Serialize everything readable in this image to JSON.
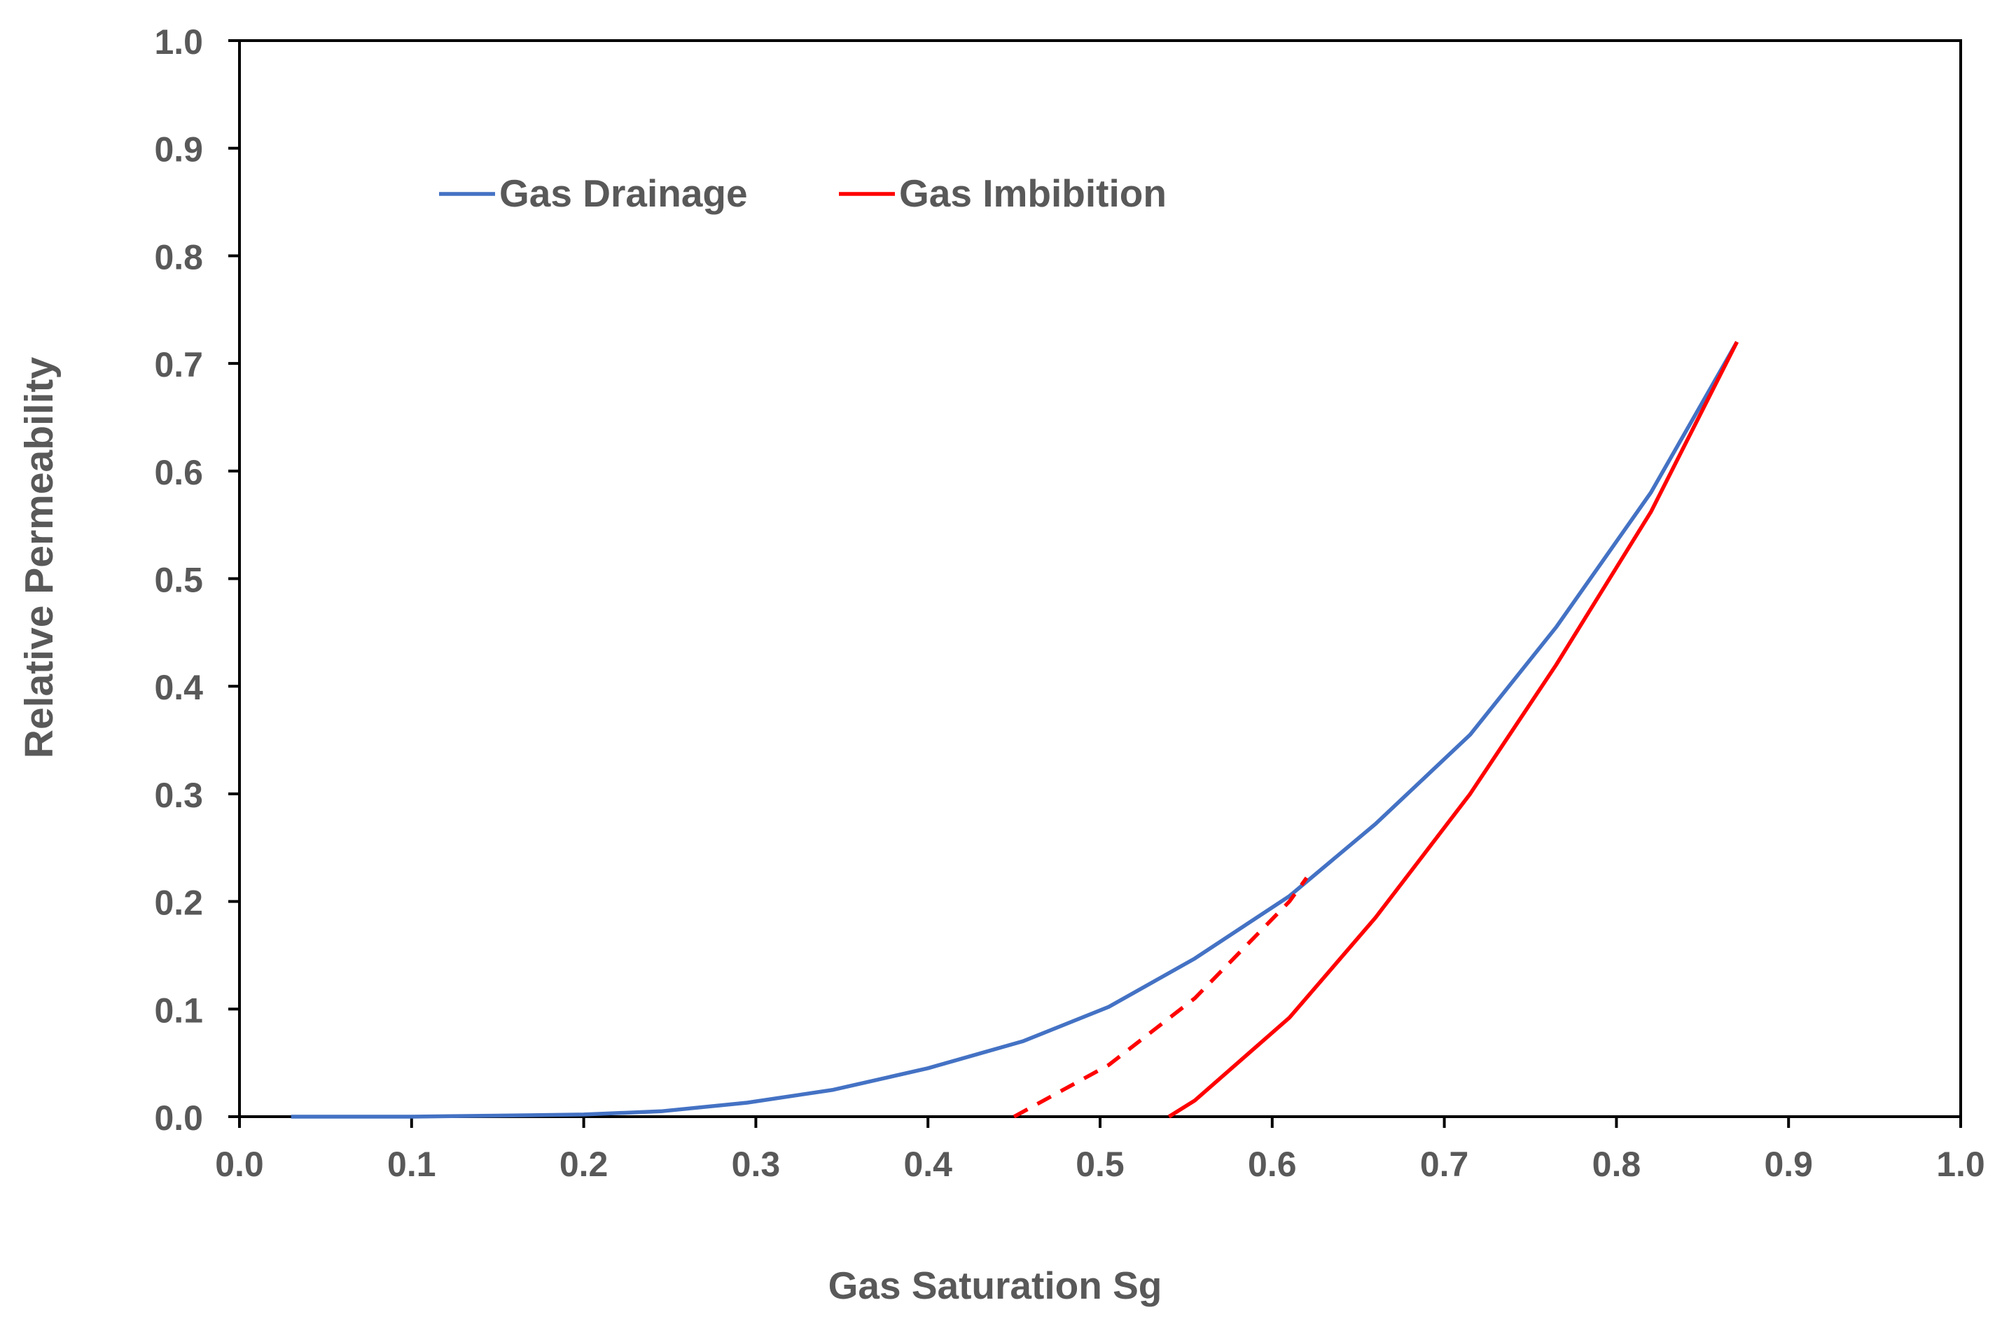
{
  "chart_data": {
    "type": "line",
    "title": "",
    "xlabel": "Gas Saturation Sg",
    "ylabel": "Relative Permeability",
    "xlim": [
      0.0,
      1.0
    ],
    "ylim": [
      0.0,
      1.0
    ],
    "grid": false,
    "legend_position": "top-left",
    "x_ticks": [
      "0.0",
      "0.1",
      "0.2",
      "0.3",
      "0.4",
      "0.5",
      "0.6",
      "0.7",
      "0.8",
      "0.9",
      "1.0"
    ],
    "y_ticks": [
      "0.0",
      "0.1",
      "0.2",
      "0.3",
      "0.4",
      "0.5",
      "0.6",
      "0.7",
      "0.8",
      "0.9",
      "1.0"
    ],
    "series": [
      {
        "name": "Gas Drainage",
        "color": "#4472C4",
        "style": "solid",
        "in_legend": true,
        "x": [
          0.03,
          0.1,
          0.15,
          0.2,
          0.245,
          0.295,
          0.345,
          0.4,
          0.455,
          0.505,
          0.555,
          0.61,
          0.66,
          0.715,
          0.765,
          0.82,
          0.87
        ],
        "y": [
          0.0,
          0.0,
          0.001,
          0.002,
          0.005,
          0.013,
          0.025,
          0.045,
          0.07,
          0.102,
          0.147,
          0.205,
          0.272,
          0.355,
          0.455,
          0.58,
          0.72
        ]
      },
      {
        "name": "Gas Imbibition",
        "color": "#FF0000",
        "style": "solid",
        "in_legend": true,
        "x": [
          0.54,
          0.555,
          0.61,
          0.66,
          0.715,
          0.765,
          0.82,
          0.87
        ],
        "y": [
          0.0,
          0.015,
          0.092,
          0.185,
          0.3,
          0.42,
          0.562,
          0.72
        ]
      },
      {
        "name": "Gas Imbibition (extrapolated)",
        "color": "#FF0000",
        "style": "dashed",
        "in_legend": false,
        "x": [
          0.45,
          0.505,
          0.555,
          0.61,
          0.62
        ],
        "y": [
          0.0,
          0.048,
          0.11,
          0.2,
          0.222
        ]
      }
    ]
  }
}
